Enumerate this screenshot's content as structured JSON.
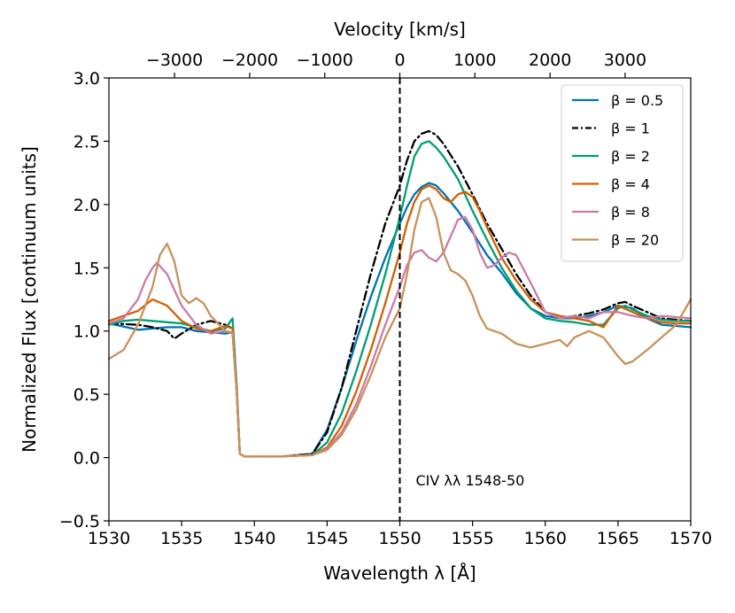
{
  "chart_data": {
    "type": "line",
    "xlabel": "Wavelength λ [Å]",
    "ylabel": "Normalized Flux [continuum units]",
    "top_xlabel": "Velocity [km/s]",
    "xlim": [
      1530,
      1570
    ],
    "ylim": [
      -0.5,
      3.0
    ],
    "x_ticks": [
      1530,
      1535,
      1540,
      1545,
      1550,
      1555,
      1560,
      1565,
      1570
    ],
    "x_tick_labels": [
      "1530",
      "1535",
      "1540",
      "1545",
      "1550",
      "1555",
      "1560",
      "1565",
      "1570"
    ],
    "y_ticks": [
      -0.5,
      0.0,
      0.5,
      1.0,
      1.5,
      2.0,
      2.5,
      3.0
    ],
    "y_tick_labels": [
      "−0.5",
      "0.0",
      "0.5",
      "1.0",
      "1.5",
      "2.0",
      "2.5",
      "3.0"
    ],
    "top_ticks_wavelength": [
      1534.51,
      1539.68,
      1544.84,
      1550.0,
      1555.16,
      1560.33,
      1565.49
    ],
    "top_tick_labels": [
      "−3000",
      "−2000",
      "−1000",
      "0",
      "1000",
      "2000",
      "3000"
    ],
    "vline": 1550,
    "annotation": "CIV λλ 1548-50",
    "legend_position": "top-right",
    "series": [
      {
        "name": "β = 0.5",
        "color": "#0072b2",
        "dash": "solid",
        "x": [
          1530,
          1532,
          1534,
          1535,
          1536,
          1537,
          1538,
          1538.5,
          1538.8,
          1539,
          1539.3,
          1540,
          1542,
          1544,
          1545,
          1546,
          1547,
          1548,
          1549,
          1550,
          1550.5,
          1551,
          1551.5,
          1552,
          1552.5,
          1553,
          1554,
          1555,
          1556,
          1557,
          1558,
          1559,
          1560,
          1561,
          1562,
          1563,
          1564,
          1565,
          1566,
          1567,
          1568,
          1569,
          1570
        ],
        "values": [
          1.06,
          1.01,
          1.03,
          1.03,
          1.0,
          0.99,
          0.98,
          0.99,
          0.5,
          0.03,
          0.01,
          0.01,
          0.01,
          0.03,
          0.22,
          0.55,
          0.92,
          1.27,
          1.58,
          1.85,
          1.98,
          2.08,
          2.14,
          2.17,
          2.15,
          2.09,
          1.95,
          1.78,
          1.6,
          1.46,
          1.3,
          1.18,
          1.12,
          1.1,
          1.1,
          1.12,
          1.15,
          1.2,
          1.18,
          1.1,
          1.05,
          1.04,
          1.03
        ]
      },
      {
        "name": "β = 1",
        "color": "#000000",
        "dash": "dashdot",
        "x": [
          1530,
          1532,
          1533,
          1534,
          1534.5,
          1535,
          1536,
          1537,
          1538,
          1538.5,
          1538.8,
          1539,
          1539.3,
          1540,
          1542,
          1544,
          1545,
          1546,
          1547,
          1548,
          1549,
          1550,
          1550.5,
          1551,
          1551.5,
          1552,
          1552.5,
          1553,
          1554,
          1555,
          1556,
          1557,
          1558,
          1559,
          1560,
          1561,
          1562,
          1563,
          1564,
          1565,
          1565.5,
          1566,
          1567,
          1568,
          1569,
          1570
        ],
        "values": [
          1.06,
          1.05,
          1.03,
          1.0,
          0.94,
          0.98,
          1.05,
          1.08,
          1.05,
          1.02,
          0.5,
          0.03,
          0.01,
          0.01,
          0.01,
          0.03,
          0.2,
          0.55,
          1.0,
          1.45,
          1.85,
          2.15,
          2.35,
          2.5,
          2.56,
          2.58,
          2.55,
          2.48,
          2.3,
          2.08,
          1.85,
          1.65,
          1.45,
          1.28,
          1.15,
          1.1,
          1.12,
          1.14,
          1.17,
          1.22,
          1.23,
          1.2,
          1.15,
          1.1,
          1.09,
          1.08
        ]
      },
      {
        "name": "β = 2",
        "color": "#009e73",
        "dash": "solid",
        "x": [
          1530,
          1531,
          1532,
          1533,
          1534,
          1535,
          1536,
          1537,
          1538,
          1538.5,
          1538.8,
          1539,
          1539.3,
          1540,
          1542,
          1544,
          1545,
          1546,
          1547,
          1548,
          1549,
          1550,
          1550.5,
          1551,
          1551.5,
          1552,
          1552.5,
          1553,
          1554,
          1555,
          1556,
          1557,
          1558,
          1559,
          1560,
          1561,
          1562,
          1563,
          1564,
          1565,
          1565.5,
          1566,
          1567,
          1568,
          1569,
          1570
        ],
        "values": [
          1.05,
          1.08,
          1.09,
          1.08,
          1.07,
          1.06,
          1.03,
          1.0,
          1.02,
          1.1,
          0.55,
          0.03,
          0.01,
          0.01,
          0.01,
          0.02,
          0.12,
          0.35,
          0.68,
          1.05,
          1.45,
          1.9,
          2.15,
          2.38,
          2.48,
          2.5,
          2.45,
          2.38,
          2.2,
          1.95,
          1.72,
          1.5,
          1.32,
          1.18,
          1.1,
          1.08,
          1.07,
          1.05,
          1.05,
          1.18,
          1.2,
          1.17,
          1.12,
          1.09,
          1.08,
          1.08
        ]
      },
      {
        "name": "β = 4",
        "color": "#d55e00",
        "dash": "solid",
        "x": [
          1530,
          1531,
          1532,
          1533,
          1534,
          1535,
          1536,
          1537,
          1538,
          1538.5,
          1538.8,
          1539,
          1539.3,
          1540,
          1542,
          1544,
          1545,
          1546,
          1547,
          1548,
          1549,
          1550,
          1550.5,
          1551,
          1551.5,
          1552,
          1552.5,
          1553,
          1553.5,
          1554,
          1554.5,
          1555,
          1555.5,
          1556,
          1557,
          1558,
          1559,
          1560,
          1561,
          1562,
          1563,
          1564,
          1565,
          1566,
          1567,
          1568,
          1569,
          1570
        ],
        "values": [
          1.08,
          1.12,
          1.16,
          1.25,
          1.2,
          1.08,
          1.02,
          1.0,
          1.04,
          1.02,
          0.5,
          0.03,
          0.01,
          0.01,
          0.01,
          0.02,
          0.08,
          0.25,
          0.52,
          0.85,
          1.22,
          1.62,
          1.85,
          2.02,
          2.12,
          2.15,
          2.12,
          2.05,
          2.02,
          2.08,
          2.1,
          2.06,
          1.95,
          1.82,
          1.58,
          1.4,
          1.25,
          1.15,
          1.12,
          1.1,
          1.08,
          1.03,
          1.2,
          1.15,
          1.1,
          1.07,
          1.06,
          1.06
        ]
      },
      {
        "name": "β = 8",
        "color": "#cc79a7",
        "dash": "solid",
        "x": [
          1530,
          1531,
          1532,
          1532.5,
          1533,
          1533.3,
          1534,
          1535,
          1536,
          1537,
          1538,
          1538.5,
          1538.8,
          1539,
          1539.3,
          1540,
          1542,
          1544,
          1545,
          1546,
          1547,
          1548,
          1549,
          1550,
          1550.5,
          1551,
          1551.5,
          1552,
          1552.5,
          1553,
          1553.5,
          1554,
          1554.5,
          1555,
          1555.5,
          1556,
          1556.5,
          1557,
          1557.5,
          1558,
          1559,
          1560,
          1561,
          1562,
          1563,
          1564,
          1565,
          1566,
          1567,
          1568,
          1569,
          1570
        ],
        "values": [
          1.06,
          1.1,
          1.25,
          1.4,
          1.5,
          1.54,
          1.45,
          1.2,
          1.05,
          0.98,
          1.0,
          0.98,
          0.5,
          0.03,
          0.01,
          0.01,
          0.01,
          0.02,
          0.07,
          0.2,
          0.42,
          0.72,
          1.05,
          1.35,
          1.52,
          1.62,
          1.64,
          1.58,
          1.55,
          1.62,
          1.75,
          1.88,
          1.9,
          1.8,
          1.62,
          1.5,
          1.52,
          1.58,
          1.62,
          1.6,
          1.38,
          1.15,
          1.1,
          1.12,
          1.1,
          1.15,
          1.15,
          1.12,
          1.1,
          1.12,
          1.11,
          1.1
        ]
      },
      {
        "name": "β = 20",
        "color": "#c8915a",
        "dash": "solid",
        "x": [
          1530,
          1531,
          1532,
          1533,
          1533.5,
          1534,
          1534.5,
          1535,
          1535.5,
          1536,
          1536.5,
          1537,
          1538,
          1538.5,
          1538.8,
          1539,
          1539.3,
          1540,
          1542,
          1544,
          1545,
          1546,
          1547,
          1548,
          1549,
          1550,
          1550.5,
          1551,
          1551.5,
          1552,
          1552.5,
          1553,
          1553.5,
          1554,
          1554.5,
          1555,
          1555.5,
          1556,
          1557,
          1558,
          1559,
          1560,
          1561,
          1561.5,
          1562,
          1563,
          1564,
          1565,
          1565.5,
          1566,
          1567,
          1568,
          1569,
          1570
        ],
        "values": [
          0.78,
          0.85,
          1.05,
          1.35,
          1.6,
          1.69,
          1.55,
          1.28,
          1.22,
          1.26,
          1.22,
          1.12,
          1.0,
          0.99,
          0.5,
          0.03,
          0.01,
          0.01,
          0.01,
          0.02,
          0.06,
          0.18,
          0.38,
          0.65,
          0.95,
          1.18,
          1.45,
          1.8,
          2.02,
          2.05,
          1.9,
          1.62,
          1.48,
          1.45,
          1.4,
          1.28,
          1.12,
          1.02,
          0.98,
          0.9,
          0.87,
          0.9,
          0.93,
          0.88,
          0.95,
          1.0,
          0.95,
          0.8,
          0.74,
          0.76,
          0.85,
          0.95,
          1.05,
          1.25
        ]
      }
    ]
  }
}
